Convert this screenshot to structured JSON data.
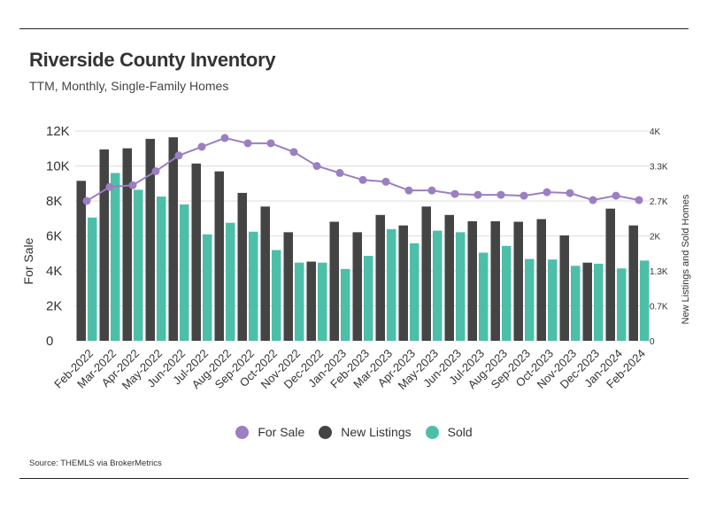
{
  "title": "Riverside County Inventory",
  "subtitle": "TTM, Monthly, Single-Family Homes",
  "source": "Source:  THEMLS via BrokerMetrics",
  "colors": {
    "for_sale": "#9b7fc1",
    "new_listings": "#444444",
    "sold": "#4dbfa8",
    "grid": "#dddddd"
  },
  "chart_data": {
    "type": "bar",
    "categories": [
      "Feb-2022",
      "Mar-2022",
      "Apr-2022",
      "May-2022",
      "Jun-2022",
      "Jul-2022",
      "Aug-2022",
      "Sep-2022",
      "Oct-2022",
      "Nov-2022",
      "Dec-2022",
      "Jan-2023",
      "Feb-2023",
      "Mar-2023",
      "Apr-2023",
      "May-2023",
      "Jun-2023",
      "Jul-2023",
      "Aug-2023",
      "Sep-2023",
      "Oct-2023",
      "Nov-2023",
      "Dec-2023",
      "Jan-2024",
      "Feb-2024"
    ],
    "ylabel": "For Sale",
    "ylabel_right": "New Listings and Sold Homes",
    "ylim": [
      0,
      12000
    ],
    "ylim_right": [
      0,
      4000
    ],
    "yticks": [
      "0",
      "2K",
      "4K",
      "6K",
      "8K",
      "10K",
      "12K"
    ],
    "yticks_right": [
      "0",
      "0.7K",
      "1.3K",
      "2K",
      "2.7K",
      "3.3K",
      "4K"
    ],
    "series": [
      {
        "name": "For Sale",
        "type": "line",
        "axis": "left",
        "values": [
          8000,
          8800,
          8900,
          9700,
          10600,
          11100,
          11600,
          11300,
          11300,
          10800,
          10000,
          9600,
          9200,
          9100,
          8600,
          8600,
          8400,
          8350,
          8350,
          8300,
          8500,
          8450,
          8050,
          8300,
          8050
        ]
      },
      {
        "name": "New Listings",
        "type": "bar",
        "axis": "right",
        "values": [
          3050,
          3650,
          3670,
          3850,
          3880,
          3380,
          3230,
          2820,
          2560,
          2070,
          1510,
          2270,
          2070,
          2400,
          2200,
          2560,
          2400,
          2280,
          2280,
          2270,
          2320,
          2010,
          1490,
          2520,
          2200
        ]
      },
      {
        "name": "Sold",
        "type": "bar",
        "axis": "right",
        "values": [
          2350,
          3200,
          2880,
          2750,
          2600,
          2030,
          2250,
          2080,
          1730,
          1490,
          1490,
          1370,
          1620,
          2130,
          1860,
          2100,
          2070,
          1680,
          1810,
          1560,
          1550,
          1430,
          1470,
          1380,
          1530
        ]
      }
    ],
    "legend": {
      "placement": "bottom-center",
      "entries": [
        "For Sale",
        "New Listings",
        "Sold"
      ]
    },
    "grid": true
  }
}
